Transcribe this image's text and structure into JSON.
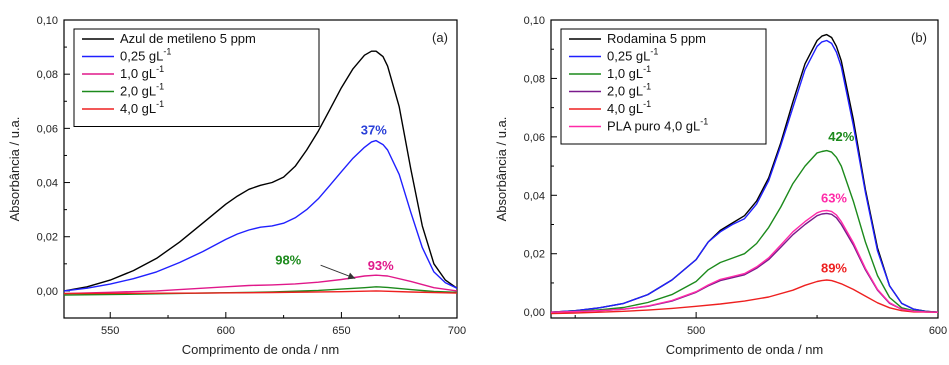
{
  "chart_data": [
    {
      "type": "line",
      "panel_label": "(a)",
      "xlabel": "Comprimento de onda / nm",
      "ylabel": "Absorbância / u.a.",
      "xlim": [
        530,
        700
      ],
      "ylim": [
        -0.01,
        0.1
      ],
      "xticks": [
        550,
        600,
        650,
        700
      ],
      "xtick_labels": [
        "550",
        "600",
        "650",
        "700"
      ],
      "yticks": [
        0.0,
        0.02,
        0.04,
        0.06,
        0.08,
        0.1
      ],
      "ytick_labels": [
        "0,00",
        "0,02",
        "0,04",
        "0,06",
        "0,08",
        "0,10"
      ],
      "grid": false,
      "legend_position": "top-left",
      "series": [
        {
          "name": "Azul de metileno 5 ppm",
          "name_sup": "",
          "color": "#000000",
          "x": [
            530,
            540,
            550,
            560,
            570,
            580,
            590,
            600,
            605,
            610,
            615,
            620,
            625,
            630,
            635,
            640,
            645,
            650,
            655,
            660,
            663,
            665,
            668,
            670,
            675,
            680,
            685,
            690,
            695,
            700
          ],
          "y": [
            0.0,
            0.0015,
            0.004,
            0.0075,
            0.012,
            0.018,
            0.025,
            0.032,
            0.035,
            0.0375,
            0.039,
            0.04,
            0.042,
            0.046,
            0.052,
            0.059,
            0.067,
            0.075,
            0.082,
            0.087,
            0.0885,
            0.0885,
            0.0865,
            0.083,
            0.068,
            0.045,
            0.024,
            0.01,
            0.004,
            0.001
          ]
        },
        {
          "name": "0,25 gL",
          "name_sup": "-1",
          "color": "#2020ff",
          "x": [
            530,
            540,
            550,
            560,
            570,
            580,
            590,
            600,
            605,
            610,
            615,
            620,
            625,
            630,
            635,
            640,
            645,
            650,
            655,
            660,
            663,
            665,
            668,
            670,
            675,
            680,
            685,
            690,
            695,
            700
          ],
          "y": [
            0.0,
            0.001,
            0.0025,
            0.0045,
            0.007,
            0.0105,
            0.0145,
            0.019,
            0.021,
            0.0225,
            0.0235,
            0.024,
            0.025,
            0.027,
            0.03,
            0.034,
            0.039,
            0.044,
            0.049,
            0.053,
            0.055,
            0.0555,
            0.054,
            0.052,
            0.043,
            0.029,
            0.016,
            0.007,
            0.003,
            0.001
          ]
        },
        {
          "name": "1,0 gL",
          "name_sup": "-1",
          "color": "#e0188a",
          "x": [
            530,
            550,
            570,
            590,
            600,
            610,
            620,
            630,
            640,
            650,
            660,
            665,
            670,
            680,
            690,
            700
          ],
          "y": [
            -0.001,
            -0.0005,
            0.0,
            0.001,
            0.0015,
            0.002,
            0.0022,
            0.0026,
            0.0032,
            0.0042,
            0.0055,
            0.0058,
            0.0055,
            0.0035,
            0.0012,
            0.0
          ]
        },
        {
          "name": "2,0 gL",
          "name_sup": "-1",
          "color": "#1c8a1c",
          "x": [
            530,
            560,
            590,
            620,
            640,
            660,
            665,
            670,
            680,
            690,
            700
          ],
          "y": [
            -0.0015,
            -0.0012,
            -0.0008,
            -0.0004,
            0.0002,
            0.0012,
            0.0015,
            0.0013,
            0.0005,
            -0.0002,
            -0.0005
          ]
        },
        {
          "name": "4,0 gL",
          "name_sup": "-1",
          "color": "#ee2020",
          "x": [
            530,
            560,
            590,
            620,
            650,
            665,
            680,
            700
          ],
          "y": [
            -0.001,
            -0.0009,
            -0.0008,
            -0.0006,
            -0.0003,
            0.0,
            -0.0004,
            -0.0008
          ]
        }
      ],
      "annotations": [
        {
          "text": "37%",
          "x": 664,
          "y": 0.0578,
          "color": "#2a40d8"
        },
        {
          "text": "98%",
          "x": 627,
          "y": 0.0098,
          "color": "#1c8a1c"
        },
        {
          "text": "93%",
          "x": 667,
          "y": 0.0078,
          "color": "#e0188a"
        }
      ],
      "arrow": {
        "from_x": 641,
        "from_y": 0.0095,
        "to_x": 656,
        "to_y": 0.0046
      }
    },
    {
      "type": "line",
      "panel_label": "(b)",
      "xlabel": "Comprimento de onda / nm",
      "ylabel": "Absorbância / u.a.",
      "xlim": [
        440,
        600
      ],
      "ylim": [
        -0.002,
        0.1
      ],
      "xticks": [
        500,
        600
      ],
      "xtick_labels": [
        "500",
        "600"
      ],
      "yticks": [
        0.0,
        0.02,
        0.04,
        0.06,
        0.08,
        0.1
      ],
      "ytick_labels": [
        "0,00",
        "0,02",
        "0,04",
        "0,06",
        "0,08",
        "0,10"
      ],
      "grid": false,
      "legend_position": "top-left",
      "series": [
        {
          "name": "Rodamina 5 ppm",
          "name_sup": "",
          "color": "#000000",
          "x": [
            440,
            450,
            460,
            470,
            480,
            490,
            500,
            505,
            510,
            515,
            520,
            525,
            530,
            535,
            540,
            545,
            550,
            552,
            554,
            556,
            558,
            560,
            565,
            570,
            575,
            580,
            585,
            590,
            595,
            600
          ],
          "y": [
            0.0,
            0.0005,
            0.0015,
            0.003,
            0.006,
            0.011,
            0.018,
            0.024,
            0.028,
            0.0305,
            0.033,
            0.038,
            0.046,
            0.058,
            0.072,
            0.085,
            0.093,
            0.0945,
            0.095,
            0.094,
            0.091,
            0.086,
            0.066,
            0.042,
            0.022,
            0.009,
            0.003,
            0.001,
            0.0003,
            0.0
          ]
        },
        {
          "name": "0,25 gL",
          "name_sup": "-1",
          "color": "#2020ff",
          "x": [
            440,
            450,
            460,
            470,
            480,
            490,
            500,
            505,
            510,
            515,
            520,
            525,
            530,
            535,
            540,
            545,
            550,
            552,
            554,
            556,
            558,
            560,
            565,
            570,
            575,
            580,
            585,
            590,
            595,
            600
          ],
          "y": [
            0.0,
            0.0005,
            0.0015,
            0.003,
            0.006,
            0.011,
            0.018,
            0.024,
            0.0275,
            0.03,
            0.032,
            0.037,
            0.045,
            0.057,
            0.07,
            0.083,
            0.091,
            0.0925,
            0.093,
            0.092,
            0.089,
            0.084,
            0.064,
            0.041,
            0.021,
            0.009,
            0.003,
            0.001,
            0.0003,
            0.0
          ]
        },
        {
          "name": "1,0 gL",
          "name_sup": "-1",
          "color": "#1c8a1c",
          "x": [
            440,
            450,
            460,
            470,
            480,
            490,
            500,
            505,
            510,
            515,
            520,
            525,
            530,
            535,
            540,
            545,
            550,
            552,
            554,
            556,
            558,
            560,
            565,
            570,
            575,
            580,
            585,
            590,
            595,
            600
          ],
          "y": [
            0.0,
            0.0003,
            0.0008,
            0.0016,
            0.0033,
            0.006,
            0.0105,
            0.0145,
            0.017,
            0.0185,
            0.02,
            0.0235,
            0.029,
            0.036,
            0.044,
            0.05,
            0.0545,
            0.055,
            0.0553,
            0.0548,
            0.053,
            0.05,
            0.038,
            0.024,
            0.0125,
            0.005,
            0.0015,
            0.0005,
            0.0002,
            0.0
          ]
        },
        {
          "name": "2,0 gL",
          "name_sup": "-1",
          "color": "#7a1a8c",
          "x": [
            440,
            450,
            460,
            470,
            480,
            490,
            500,
            505,
            510,
            515,
            520,
            525,
            530,
            535,
            540,
            545,
            550,
            552,
            554,
            556,
            558,
            560,
            565,
            570,
            575,
            580,
            585,
            590,
            595,
            600
          ],
          "y": [
            0.0,
            0.0002,
            0.0005,
            0.001,
            0.002,
            0.0038,
            0.0068,
            0.009,
            0.0108,
            0.0118,
            0.0128,
            0.015,
            0.018,
            0.0222,
            0.0265,
            0.03,
            0.033,
            0.0336,
            0.0338,
            0.0335,
            0.0323,
            0.03,
            0.023,
            0.0145,
            0.0075,
            0.003,
            0.001,
            0.0003,
            0.0001,
            0.0
          ]
        },
        {
          "name": "4,0 gL",
          "name_sup": "-1",
          "color": "#ee2020",
          "x": [
            440,
            450,
            460,
            470,
            480,
            490,
            500,
            510,
            520,
            530,
            540,
            545,
            550,
            552,
            554,
            556,
            558,
            560,
            565,
            570,
            575,
            580,
            585,
            590,
            600
          ],
          "y": [
            -0.0005,
            -0.0003,
            0.0,
            0.0003,
            0.0007,
            0.0013,
            0.002,
            0.0028,
            0.0038,
            0.0052,
            0.0075,
            0.0092,
            0.0105,
            0.0108,
            0.011,
            0.0108,
            0.0103,
            0.0097,
            0.0078,
            0.0055,
            0.0032,
            0.0015,
            0.0005,
            0.0001,
            0.0
          ]
        },
        {
          "name": "PLA puro 4,0 gL",
          "name_sup": "-1",
          "color": "#ff2aa8",
          "x": [
            440,
            450,
            460,
            470,
            480,
            490,
            500,
            505,
            510,
            515,
            520,
            525,
            530,
            535,
            540,
            545,
            550,
            552,
            554,
            556,
            558,
            560,
            565,
            570,
            575,
            580,
            585,
            590,
            595,
            600
          ],
          "y": [
            0.0,
            0.0002,
            0.0005,
            0.001,
            0.0021,
            0.004,
            0.007,
            0.0093,
            0.0112,
            0.0122,
            0.0132,
            0.0155,
            0.0186,
            0.023,
            0.0275,
            0.031,
            0.034,
            0.0346,
            0.0348,
            0.0345,
            0.0333,
            0.031,
            0.0238,
            0.015,
            0.0078,
            0.0032,
            0.001,
            0.0003,
            0.0001,
            0.0
          ]
        }
      ],
      "annotations": [
        {
          "text": "42%",
          "x": 560,
          "y": 0.0585,
          "color": "#1c8a1c"
        },
        {
          "text": "63%",
          "x": 557,
          "y": 0.0375,
          "color": "#ff2aa8"
        },
        {
          "text": "89%",
          "x": 557,
          "y": 0.0135,
          "color": "#ee2020"
        }
      ]
    }
  ]
}
